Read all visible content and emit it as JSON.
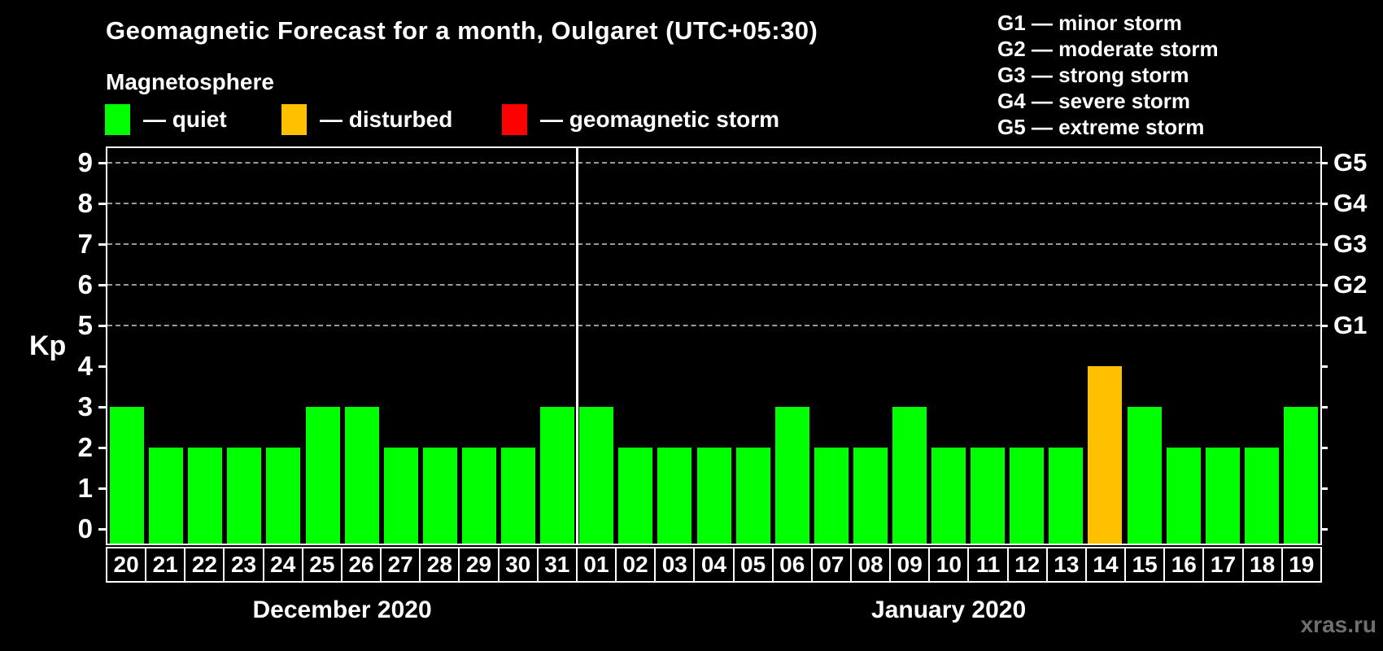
{
  "header": {
    "title": "Geomagnetic Forecast for a month, Oulgaret (UTC+05:30)",
    "subtitle": "Magnetosphere",
    "legend": [
      {
        "name": "quiet",
        "label": "— quiet",
        "color": "#00FF00"
      },
      {
        "name": "disturbed",
        "label": "— disturbed",
        "color": "#FFC000"
      },
      {
        "name": "geomagnetic-storm",
        "label": "— geomagnetic storm",
        "color": "#FF0000"
      }
    ],
    "storm_scale_legend": [
      {
        "code": "G1",
        "label": "G1 — minor storm"
      },
      {
        "code": "G2",
        "label": "G2 — moderate storm"
      },
      {
        "code": "G3",
        "label": "G3 — strong storm"
      },
      {
        "code": "G4",
        "label": "G4 — severe storm"
      },
      {
        "code": "G5",
        "label": "G5 — extreme storm"
      }
    ]
  },
  "chart_data": {
    "type": "bar",
    "title": "Geomagnetic Forecast for a month, Oulgaret (UTC+05:30)",
    "ylabel": "Kp",
    "ylim": [
      0,
      9
    ],
    "y_ticks": [
      0,
      1,
      2,
      3,
      4,
      5,
      6,
      7,
      8,
      9
    ],
    "grid": "dashed horizontal lines at Kp 5-9",
    "legend_position": "top",
    "right_axis": {
      "g_levels": [
        {
          "label": "G1",
          "kp": 5
        },
        {
          "label": "G2",
          "kp": 6
        },
        {
          "label": "G3",
          "kp": 7
        },
        {
          "label": "G4",
          "kp": 8
        },
        {
          "label": "G5",
          "kp": 9
        }
      ]
    },
    "series": [
      {
        "name": "December 2020",
        "days": [
          "20",
          "21",
          "22",
          "23",
          "24",
          "25",
          "26",
          "27",
          "28",
          "29",
          "30",
          "31"
        ],
        "values": [
          3,
          2,
          2,
          2,
          2,
          3,
          3,
          2,
          2,
          2,
          2,
          3
        ]
      },
      {
        "name": "January 2020",
        "days": [
          "01",
          "02",
          "03",
          "04",
          "05",
          "06",
          "07",
          "08",
          "09",
          "10",
          "11",
          "12",
          "13",
          "14",
          "15",
          "16",
          "17",
          "18",
          "19"
        ],
        "values": [
          3,
          2,
          2,
          2,
          2,
          3,
          2,
          2,
          3,
          2,
          2,
          2,
          2,
          4,
          3,
          2,
          2,
          2,
          3
        ]
      }
    ],
    "status_colors": {
      "quiet": "#00FF00",
      "disturbed": "#FFC000",
      "storm": "#FF0000"
    },
    "color_rule": "kp <= 3 quiet (green), kp = 4 disturbed (orange), kp >= 5 geomagnetic storm (red)"
  },
  "watermark": "xras.ru"
}
